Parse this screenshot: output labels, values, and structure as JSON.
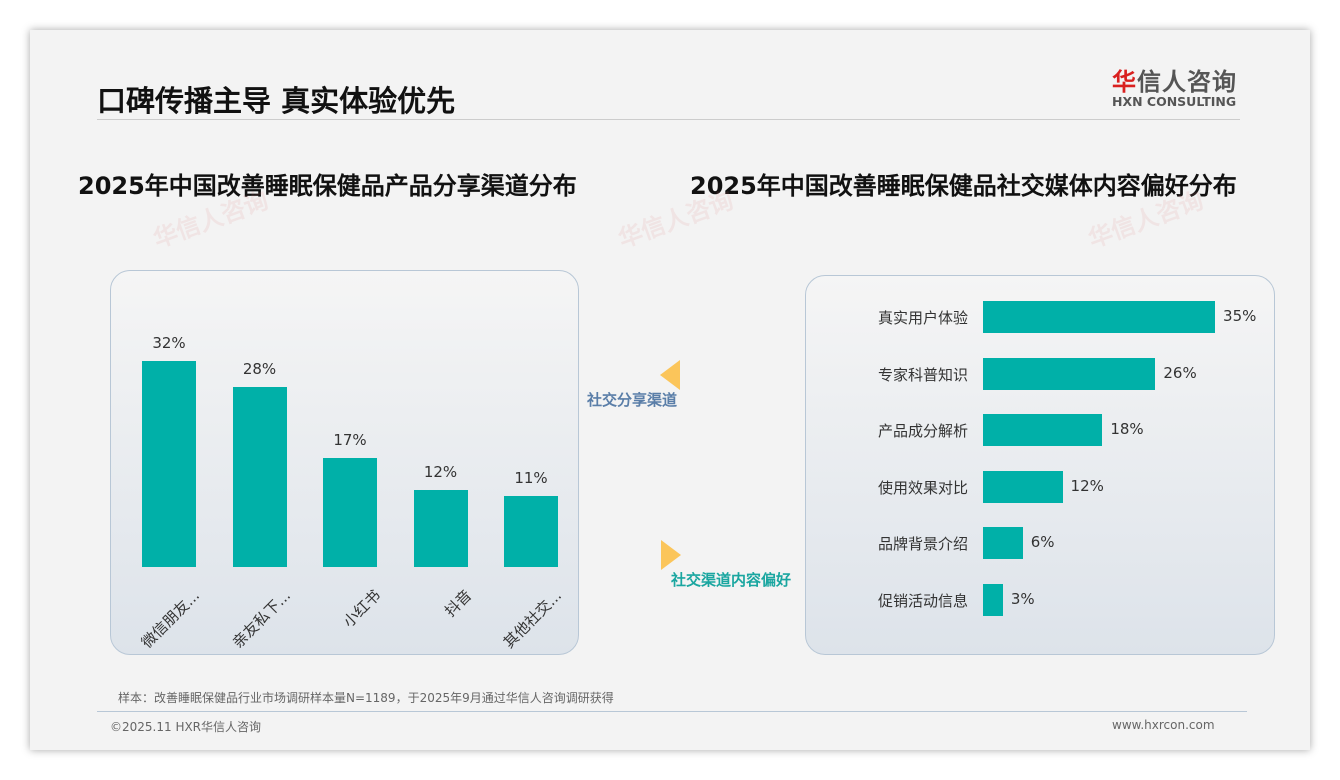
{
  "header": {
    "title": "口碑传播主导 真实体验优先",
    "logo_cn": "华信人咨询",
    "logo_en": "HXN CONSULTING"
  },
  "chart_data": [
    {
      "type": "bar",
      "title": "2025年中国改善睡眠保健品产品分享渠道分布",
      "categories": [
        "微信朋友...",
        "亲友私下...",
        "小红书",
        "抖音",
        "其他社交..."
      ],
      "values": [
        32,
        28,
        17,
        12,
        11
      ],
      "labels": [
        "32%",
        "28%",
        "17%",
        "12%",
        "11%"
      ],
      "unit": "%",
      "color": "#00b0a8"
    },
    {
      "type": "bar",
      "orientation": "horizontal",
      "title": "2025年中国改善睡眠保健品社交媒体内容偏好分布",
      "categories": [
        "真实用户体验",
        "专家科普知识",
        "产品成分解析",
        "使用效果对比",
        "品牌背景介绍",
        "促销活动信息"
      ],
      "values": [
        35,
        26,
        18,
        12,
        6,
        3
      ],
      "labels": [
        "35%",
        "26%",
        "18%",
        "12%",
        "6%",
        "3%"
      ],
      "unit": "%",
      "color": "#00b0a8"
    }
  ],
  "connectors": {
    "top": "社交分享渠道",
    "bottom": "社交渠道内容偏好"
  },
  "footer": {
    "note": "样本：改善睡眠保健品行业市场调研样本量N=1189，于2025年9月通过华信人咨询调研获得",
    "copyright": "©2025.11 HXR华信人咨询",
    "url": "www.hxrcon.com"
  }
}
